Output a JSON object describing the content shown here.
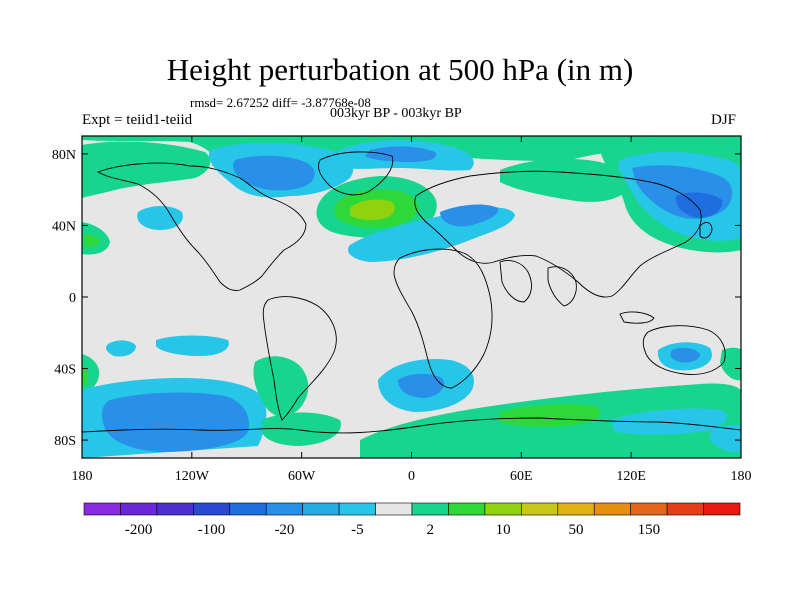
{
  "title": "Height perturbation at 500 hPa (in m)",
  "stats_line": "rmsd= 2.67252  diff= -3.87768e-08",
  "subtitle": "003kyr BP - 003kyr BP",
  "left_label": "Expt = teiid1-teiid",
  "right_label": "DJF",
  "map": {
    "projection": "cylindrical equidistant",
    "lon_ticks": [
      "180",
      "120W",
      "60W",
      "0",
      "60E",
      "120E",
      "180"
    ],
    "lat_ticks": [
      "80N",
      "40N",
      "0",
      "40S",
      "80S"
    ],
    "background_color": "#e6e6e6",
    "coastline_color": "#000000"
  },
  "colorbar": {
    "colors": [
      "#8a2be2",
      "#6a28d8",
      "#4b2fd0",
      "#2a4ad6",
      "#1e6ee0",
      "#2a8fe8",
      "#22aee3",
      "#27c6e8",
      "#e6e6e6",
      "#17d58c",
      "#2ed83a",
      "#8fd20e",
      "#c8c81a",
      "#e0b214",
      "#e38f10",
      "#e5661a",
      "#e73c18",
      "#e81a12"
    ],
    "labels": [
      "-200",
      "-100",
      "-20",
      "-5",
      "2",
      "10",
      "50",
      "150"
    ]
  },
  "contour_colors": {
    "light_blue": "#27c6e8",
    "blue": "#2a8fe8",
    "green": "#17d58c",
    "bright_green": "#2ed83a",
    "yellow_green": "#8fd20e"
  }
}
